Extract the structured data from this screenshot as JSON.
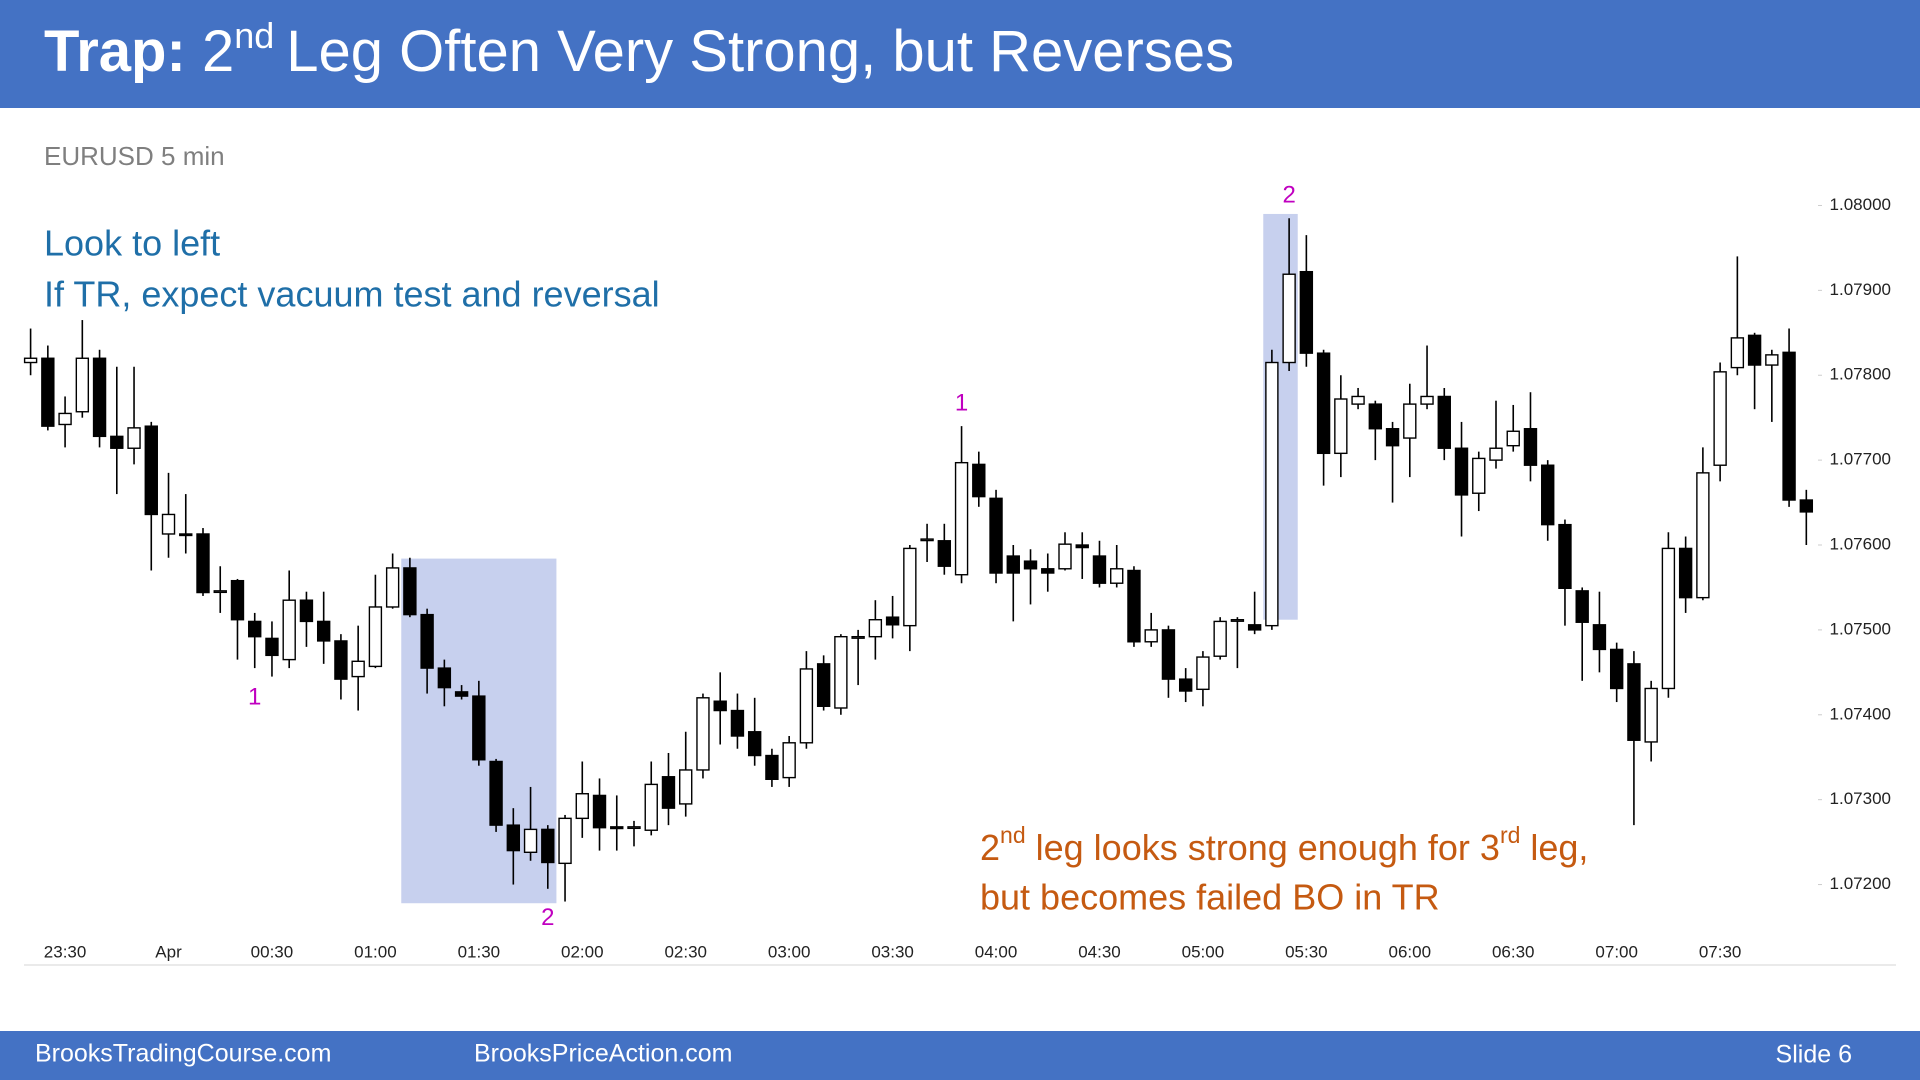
{
  "header": {
    "title_bold": "Trap:",
    "title_num": "2",
    "title_sup": "nd",
    "title_rest": "Leg Often Very Strong, but Reverses"
  },
  "footer": {
    "left": "BrooksTradingCourse.com",
    "middle": "BrooksPriceAction.com",
    "right": "Slide 6"
  },
  "chart_data": {
    "type": "candlestick",
    "subtitle": "EURUSD 5 min",
    "annotations": {
      "blue_line1": "Look to left",
      "blue_line2": "If TR, expect vacuum test and reversal",
      "orange_num1": "2",
      "orange_sup1": "nd",
      "orange_mid": "leg looks strong enough for 3",
      "orange_sup2": "rd",
      "orange_end": "leg,",
      "orange_line2": "but becomes failed BO in TR"
    },
    "swing_labels": [
      {
        "text": "1",
        "index": 13,
        "at": "low"
      },
      {
        "text": "2",
        "index": 30,
        "at": "low"
      },
      {
        "text": "1",
        "index": 54,
        "at": "high"
      },
      {
        "text": "2",
        "index": 73,
        "at": "high"
      }
    ],
    "swing_label_color": "#c000c0",
    "highlights": [
      {
        "from": 22,
        "to": 30,
        "top": 1.07584,
        "bottom": 1.07178
      },
      {
        "from": 72,
        "to": 73,
        "top": 1.0799,
        "bottom": 1.07512
      }
    ],
    "highlight_color": "#c7d0ee",
    "up_color": "#ffffff",
    "down_color": "#000000",
    "categories": [
      null,
      null,
      "23:30",
      null,
      null,
      null,
      null,
      null,
      "Apr",
      null,
      null,
      null,
      null,
      null,
      "00:30",
      null,
      null,
      null,
      null,
      null,
      "01:00",
      null,
      null,
      null,
      null,
      null,
      "01:30",
      null,
      null,
      null,
      null,
      null,
      "02:00",
      null,
      null,
      null,
      null,
      null,
      "02:30",
      null,
      null,
      null,
      null,
      null,
      "03:00",
      null,
      null,
      null,
      null,
      null,
      "03:30",
      null,
      null,
      null,
      null,
      null,
      "04:00",
      null,
      null,
      null,
      null,
      null,
      "04:30",
      null,
      null,
      null,
      null,
      null,
      "05:00",
      null,
      null,
      null,
      null,
      null,
      "05:30",
      null,
      null,
      null,
      null,
      null,
      "06:00",
      null,
      null,
      null,
      null,
      null,
      "06:30",
      null,
      null,
      null,
      null,
      null,
      "07:00",
      null,
      null,
      null,
      null,
      null,
      "07:30",
      null,
      null,
      null,
      null,
      null
    ],
    "open": [
      1.07815,
      1.0782,
      1.07742,
      1.07757,
      1.0782,
      1.07728,
      1.07714,
      1.0774,
      1.07613,
      1.07613,
      1.07613,
      1.07546,
      1.07558,
      1.0751,
      1.0749,
      1.07465,
      1.07535,
      1.0751,
      1.07487,
      1.07445,
      1.07457,
      1.07527,
      1.07573,
      1.07518,
      1.07455,
      1.07427,
      1.07422,
      1.07345,
      1.0727,
      1.07238,
      1.07265,
      1.07225,
      1.07278,
      1.07305,
      1.07268,
      1.07268,
      1.07264,
      1.07327,
      1.07295,
      1.07335,
      1.07416,
      1.07405,
      1.0738,
      1.07352,
      1.07326,
      1.07367,
      1.0746,
      1.07408,
      1.07492,
      1.07492,
      1.07515,
      1.07505,
      1.07607,
      1.07605,
      1.07565,
      1.07695,
      1.07655,
      1.07587,
      1.07581,
      1.07572,
      1.07572,
      1.076,
      1.07587,
      1.07555,
      1.0757,
      1.07486,
      1.075,
      1.07442,
      1.0743,
      1.07469,
      1.07512,
      1.07506,
      1.07505,
      1.07815,
      1.07922,
      1.07826,
      1.07708,
      1.07766,
      1.07766,
      1.07737,
      1.07726,
      1.07766,
      1.07775,
      1.07714,
      1.07661,
      1.077,
      1.07717,
      1.07737,
      1.07694,
      1.07624,
      1.07546,
      1.07506,
      1.07477,
      1.0746,
      1.07368,
      1.07431,
      1.07596,
      1.07538,
      1.07694,
      1.07809,
      1.07847,
      1.07812,
      1.07827,
      1.07653
    ],
    "high": [
      1.07855,
      1.07835,
      1.07775,
      1.07865,
      1.0783,
      1.0781,
      1.0781,
      1.07745,
      1.07685,
      1.0766,
      1.0762,
      1.07575,
      1.0756,
      1.0752,
      1.0751,
      1.0757,
      1.07545,
      1.07545,
      1.07495,
      1.07505,
      1.07565,
      1.0759,
      1.07585,
      1.07525,
      1.07465,
      1.07435,
      1.0744,
      1.07348,
      1.0729,
      1.07315,
      1.0727,
      1.07282,
      1.07345,
      1.07325,
      1.07305,
      1.07275,
      1.07345,
      1.07355,
      1.0738,
      1.07425,
      1.0745,
      1.07425,
      1.0742,
      1.0736,
      1.07375,
      1.07475,
      1.0747,
      1.07495,
      1.075,
      1.07535,
      1.0754,
      1.076,
      1.07625,
      1.07625,
      1.0774,
      1.0771,
      1.07665,
      1.076,
      1.07595,
      1.0759,
      1.07615,
      1.07615,
      1.07605,
      1.076,
      1.07575,
      1.0752,
      1.07505,
      1.07455,
      1.07475,
      1.07515,
      1.07515,
      1.07545,
      1.0783,
      1.07985,
      1.07965,
      1.0783,
      1.078,
      1.07785,
      1.0777,
      1.07745,
      1.0779,
      1.07835,
      1.07785,
      1.07745,
      1.0771,
      1.0777,
      1.07765,
      1.0778,
      1.077,
      1.0763,
      1.0755,
      1.07545,
      1.07485,
      1.07475,
      1.0744,
      1.07615,
      1.0761,
      1.07715,
      1.07815,
      1.0794,
      1.0785,
      1.0783,
      1.07855,
      1.07665
    ],
    "low": [
      1.078,
      1.07735,
      1.07715,
      1.0775,
      1.07715,
      1.0766,
      1.07695,
      1.0757,
      1.07585,
      1.0759,
      1.0754,
      1.0752,
      1.07465,
      1.07455,
      1.07445,
      1.07455,
      1.0748,
      1.0746,
      1.07418,
      1.07405,
      1.07455,
      1.07525,
      1.07515,
      1.07425,
      1.0741,
      1.07418,
      1.0734,
      1.07262,
      1.072,
      1.07228,
      1.07195,
      1.0718,
      1.07255,
      1.0724,
      1.0724,
      1.07245,
      1.07258,
      1.0727,
      1.0728,
      1.07325,
      1.07365,
      1.0736,
      1.0734,
      1.07315,
      1.07315,
      1.0736,
      1.07405,
      1.074,
      1.07435,
      1.07465,
      1.0749,
      1.07475,
      1.0758,
      1.07565,
      1.07555,
      1.07645,
      1.07555,
      1.0751,
      1.0753,
      1.07545,
      1.0757,
      1.0756,
      1.0755,
      1.0755,
      1.0748,
      1.0748,
      1.0742,
      1.07415,
      1.0741,
      1.07465,
      1.07455,
      1.07495,
      1.075,
      1.07805,
      1.0781,
      1.0767,
      1.0768,
      1.0776,
      1.077,
      1.0765,
      1.0768,
      1.0776,
      1.077,
      1.0761,
      1.0764,
      1.0769,
      1.0771,
      1.07675,
      1.07605,
      1.07505,
      1.0744,
      1.0745,
      1.07415,
      1.0727,
      1.07345,
      1.0742,
      1.0752,
      1.07535,
      1.07675,
      1.078,
      1.0776,
      1.07745,
      1.07645,
      1.076
    ],
    "close": [
      1.0782,
      1.0774,
      1.07755,
      1.0782,
      1.07728,
      1.07714,
      1.07738,
      1.07636,
      1.07636,
      1.07612,
      1.07544,
      1.07546,
      1.07512,
      1.07492,
      1.0747,
      1.07535,
      1.0751,
      1.07487,
      1.07442,
      1.07463,
      1.07527,
      1.07573,
      1.07518,
      1.07455,
      1.07432,
      1.07422,
      1.07347,
      1.0727,
      1.0724,
      1.07265,
      1.07226,
      1.07278,
      1.07307,
      1.07267,
      1.07266,
      1.07268,
      1.07318,
      1.0729,
      1.07335,
      1.0742,
      1.07405,
      1.07375,
      1.07352,
      1.07324,
      1.07367,
      1.07454,
      1.0741,
      1.07492,
      1.07492,
      1.07512,
      1.07506,
      1.07596,
      1.07607,
      1.07575,
      1.07697,
      1.07657,
      1.07567,
      1.07567,
      1.07572,
      1.07567,
      1.07601,
      1.07597,
      1.07555,
      1.07572,
      1.07486,
      1.075,
      1.07442,
      1.07428,
      1.07468,
      1.0751,
      1.07512,
      1.075,
      1.07815,
      1.07919,
      1.07826,
      1.07708,
      1.07772,
      1.07775,
      1.07737,
      1.07717,
      1.07766,
      1.07775,
      1.07714,
      1.07659,
      1.07702,
      1.07714,
      1.07734,
      1.07694,
      1.07624,
      1.07549,
      1.07509,
      1.07477,
      1.07431,
      1.0737,
      1.07431,
      1.07596,
      1.07538,
      1.07685,
      1.07804,
      1.07844,
      1.07812,
      1.07824,
      1.07653,
      1.07639
    ],
    "ylim": [
      1.0715,
      1.0803
    ],
    "yticks": [
      {
        "value": 1.072,
        "label": "1.07200"
      },
      {
        "value": 1.073,
        "label": "1.07300"
      },
      {
        "value": 1.074,
        "label": "1.07400"
      },
      {
        "value": 1.075,
        "label": "1.07500"
      },
      {
        "value": 1.076,
        "label": "1.07600"
      },
      {
        "value": 1.077,
        "label": "1.07700"
      },
      {
        "value": 1.078,
        "label": "1.07800"
      },
      {
        "value": 1.079,
        "label": "1.07900"
      },
      {
        "value": 1.08,
        "label": "1.08000"
      }
    ]
  }
}
